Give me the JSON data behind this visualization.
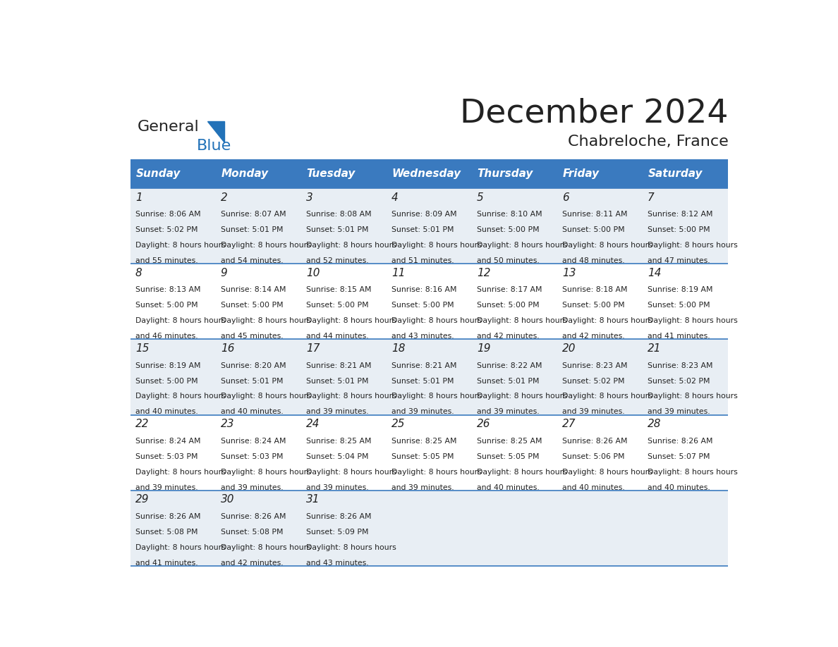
{
  "title": "December 2024",
  "subtitle": "Chabreloche, France",
  "header_color": "#3a7abf",
  "header_text_color": "#ffffff",
  "day_names": [
    "Sunday",
    "Monday",
    "Tuesday",
    "Wednesday",
    "Thursday",
    "Friday",
    "Saturday"
  ],
  "background_color": "#ffffff",
  "row_line_color": "#3a7abf",
  "text_color": "#222222",
  "cell_bg_odd": "#e8eef4",
  "cell_bg_even": "#ffffff",
  "days": [
    {
      "day": 1,
      "col": 0,
      "row": 0,
      "sunrise": "8:06 AM",
      "sunset": "5:02 PM",
      "daylight": "8 hours and 55 minutes."
    },
    {
      "day": 2,
      "col": 1,
      "row": 0,
      "sunrise": "8:07 AM",
      "sunset": "5:01 PM",
      "daylight": "8 hours and 54 minutes."
    },
    {
      "day": 3,
      "col": 2,
      "row": 0,
      "sunrise": "8:08 AM",
      "sunset": "5:01 PM",
      "daylight": "8 hours and 52 minutes."
    },
    {
      "day": 4,
      "col": 3,
      "row": 0,
      "sunrise": "8:09 AM",
      "sunset": "5:01 PM",
      "daylight": "8 hours and 51 minutes."
    },
    {
      "day": 5,
      "col": 4,
      "row": 0,
      "sunrise": "8:10 AM",
      "sunset": "5:00 PM",
      "daylight": "8 hours and 50 minutes."
    },
    {
      "day": 6,
      "col": 5,
      "row": 0,
      "sunrise": "8:11 AM",
      "sunset": "5:00 PM",
      "daylight": "8 hours and 48 minutes."
    },
    {
      "day": 7,
      "col": 6,
      "row": 0,
      "sunrise": "8:12 AM",
      "sunset": "5:00 PM",
      "daylight": "8 hours and 47 minutes."
    },
    {
      "day": 8,
      "col": 0,
      "row": 1,
      "sunrise": "8:13 AM",
      "sunset": "5:00 PM",
      "daylight": "8 hours and 46 minutes."
    },
    {
      "day": 9,
      "col": 1,
      "row": 1,
      "sunrise": "8:14 AM",
      "sunset": "5:00 PM",
      "daylight": "8 hours and 45 minutes."
    },
    {
      "day": 10,
      "col": 2,
      "row": 1,
      "sunrise": "8:15 AM",
      "sunset": "5:00 PM",
      "daylight": "8 hours and 44 minutes."
    },
    {
      "day": 11,
      "col": 3,
      "row": 1,
      "sunrise": "8:16 AM",
      "sunset": "5:00 PM",
      "daylight": "8 hours and 43 minutes."
    },
    {
      "day": 12,
      "col": 4,
      "row": 1,
      "sunrise": "8:17 AM",
      "sunset": "5:00 PM",
      "daylight": "8 hours and 42 minutes."
    },
    {
      "day": 13,
      "col": 5,
      "row": 1,
      "sunrise": "8:18 AM",
      "sunset": "5:00 PM",
      "daylight": "8 hours and 42 minutes."
    },
    {
      "day": 14,
      "col": 6,
      "row": 1,
      "sunrise": "8:19 AM",
      "sunset": "5:00 PM",
      "daylight": "8 hours and 41 minutes."
    },
    {
      "day": 15,
      "col": 0,
      "row": 2,
      "sunrise": "8:19 AM",
      "sunset": "5:00 PM",
      "daylight": "8 hours and 40 minutes."
    },
    {
      "day": 16,
      "col": 1,
      "row": 2,
      "sunrise": "8:20 AM",
      "sunset": "5:01 PM",
      "daylight": "8 hours and 40 minutes."
    },
    {
      "day": 17,
      "col": 2,
      "row": 2,
      "sunrise": "8:21 AM",
      "sunset": "5:01 PM",
      "daylight": "8 hours and 39 minutes."
    },
    {
      "day": 18,
      "col": 3,
      "row": 2,
      "sunrise": "8:21 AM",
      "sunset": "5:01 PM",
      "daylight": "8 hours and 39 minutes."
    },
    {
      "day": 19,
      "col": 4,
      "row": 2,
      "sunrise": "8:22 AM",
      "sunset": "5:01 PM",
      "daylight": "8 hours and 39 minutes."
    },
    {
      "day": 20,
      "col": 5,
      "row": 2,
      "sunrise": "8:23 AM",
      "sunset": "5:02 PM",
      "daylight": "8 hours and 39 minutes."
    },
    {
      "day": 21,
      "col": 6,
      "row": 2,
      "sunrise": "8:23 AM",
      "sunset": "5:02 PM",
      "daylight": "8 hours and 39 minutes."
    },
    {
      "day": 22,
      "col": 0,
      "row": 3,
      "sunrise": "8:24 AM",
      "sunset": "5:03 PM",
      "daylight": "8 hours and 39 minutes."
    },
    {
      "day": 23,
      "col": 1,
      "row": 3,
      "sunrise": "8:24 AM",
      "sunset": "5:03 PM",
      "daylight": "8 hours and 39 minutes."
    },
    {
      "day": 24,
      "col": 2,
      "row": 3,
      "sunrise": "8:25 AM",
      "sunset": "5:04 PM",
      "daylight": "8 hours and 39 minutes."
    },
    {
      "day": 25,
      "col": 3,
      "row": 3,
      "sunrise": "8:25 AM",
      "sunset": "5:05 PM",
      "daylight": "8 hours and 39 minutes."
    },
    {
      "day": 26,
      "col": 4,
      "row": 3,
      "sunrise": "8:25 AM",
      "sunset": "5:05 PM",
      "daylight": "8 hours and 40 minutes."
    },
    {
      "day": 27,
      "col": 5,
      "row": 3,
      "sunrise": "8:26 AM",
      "sunset": "5:06 PM",
      "daylight": "8 hours and 40 minutes."
    },
    {
      "day": 28,
      "col": 6,
      "row": 3,
      "sunrise": "8:26 AM",
      "sunset": "5:07 PM",
      "daylight": "8 hours and 40 minutes."
    },
    {
      "day": 29,
      "col": 0,
      "row": 4,
      "sunrise": "8:26 AM",
      "sunset": "5:08 PM",
      "daylight": "8 hours and 41 minutes."
    },
    {
      "day": 30,
      "col": 1,
      "row": 4,
      "sunrise": "8:26 AM",
      "sunset": "5:08 PM",
      "daylight": "8 hours and 42 minutes."
    },
    {
      "day": 31,
      "col": 2,
      "row": 4,
      "sunrise": "8:26 AM",
      "sunset": "5:09 PM",
      "daylight": "8 hours and 43 minutes."
    }
  ],
  "num_rows": 5,
  "num_cols": 7,
  "logo_general_color": "#222222",
  "logo_blue_color": "#2272b8"
}
